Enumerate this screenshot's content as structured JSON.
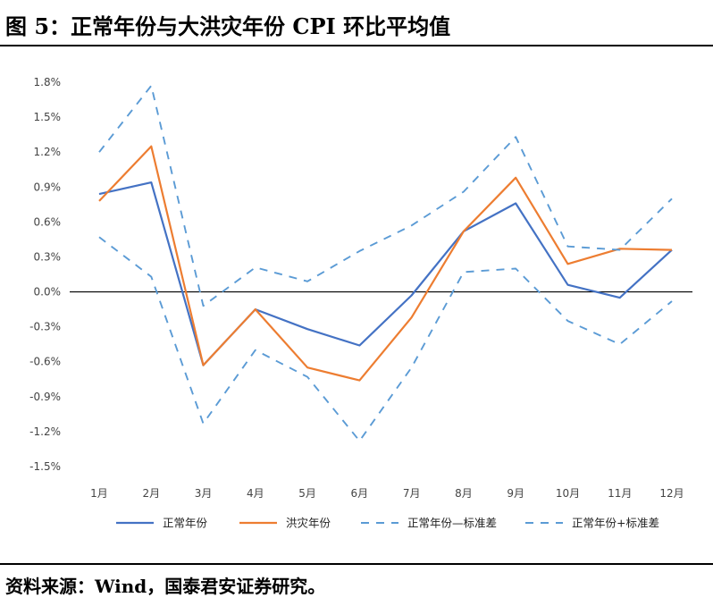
{
  "header": {
    "title": "图 5：正常年份与大洪灾年份 CPI 环比平均值"
  },
  "footer": {
    "source": "资料来源：Wind，国泰君安证券研究。"
  },
  "chart_data": {
    "type": "line",
    "categories": [
      "1月",
      "2月",
      "3月",
      "4月",
      "5月",
      "6月",
      "7月",
      "8月",
      "9月",
      "10月",
      "11月",
      "12月"
    ],
    "yticks": [
      "1.8%",
      "1.5%",
      "1.2%",
      "0.9%",
      "0.6%",
      "0.3%",
      "0.0%",
      "-0.3%",
      "-0.6%",
      "-0.9%",
      "-1.2%",
      "-1.5%"
    ],
    "ylim": [
      -1.5,
      1.8
    ],
    "series": [
      {
        "name": "正常年份",
        "color": "#4472C4",
        "dash": false,
        "values": [
          0.84,
          0.94,
          -0.63,
          -0.15,
          -0.32,
          -0.46,
          -0.03,
          0.52,
          0.76,
          0.06,
          -0.05,
          0.36
        ]
      },
      {
        "name": "洪灾年份",
        "color": "#ED7D31",
        "dash": false,
        "values": [
          0.78,
          1.25,
          -0.63,
          -0.15,
          -0.65,
          -0.76,
          -0.22,
          0.52,
          0.98,
          0.24,
          0.37,
          0.36
        ]
      },
      {
        "name": "正常年份—标准差",
        "color": "#5B9BD5",
        "dash": true,
        "values": [
          0.47,
          0.13,
          -1.13,
          -0.5,
          -0.73,
          -1.28,
          -0.65,
          0.17,
          0.2,
          -0.25,
          -0.45,
          -0.08
        ]
      },
      {
        "name": "正常年份+标准差",
        "color": "#5B9BD5",
        "dash": true,
        "values": [
          1.2,
          1.77,
          -0.12,
          0.21,
          0.09,
          0.35,
          0.57,
          0.86,
          1.33,
          0.39,
          0.36,
          0.8
        ]
      }
    ]
  }
}
